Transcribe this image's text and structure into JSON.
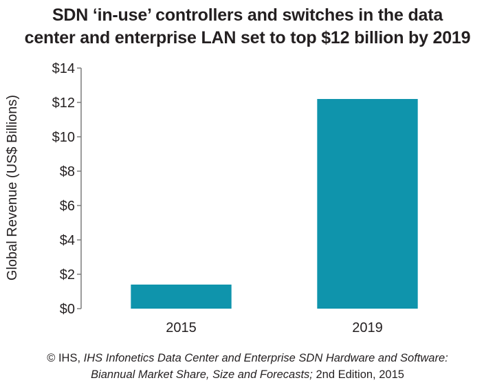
{
  "chart_data": {
    "type": "bar",
    "title_lines": [
      "SDN ‘in-use’ controllers and switches in the data",
      "center and enterprise LAN set to top $12 billion by 2019"
    ],
    "ylabel": "Global Revenue (US$ Billions)",
    "xlabel": "",
    "categories": [
      "2015",
      "2019"
    ],
    "values": [
      1.4,
      12.2
    ],
    "ylim": [
      0,
      14
    ],
    "yticks": [
      0,
      2,
      4,
      6,
      8,
      10,
      12,
      14
    ],
    "ytick_labels": [
      "$0",
      "$2",
      "$4",
      "$6",
      "$8",
      "$10",
      "$12",
      "$14"
    ],
    "bar_color": "#0f94ac",
    "axis_color": "#7a7a7a",
    "grid": false,
    "legend": false
  },
  "source": {
    "prefix": "© IHS, ",
    "italic_1": "IHS Infonetics Data Center and Enterprise SDN Hardware and Software:",
    "italic_2": "Biannual Market Share, Size and Forecasts;",
    "suffix": " 2nd Edition, 2015"
  }
}
